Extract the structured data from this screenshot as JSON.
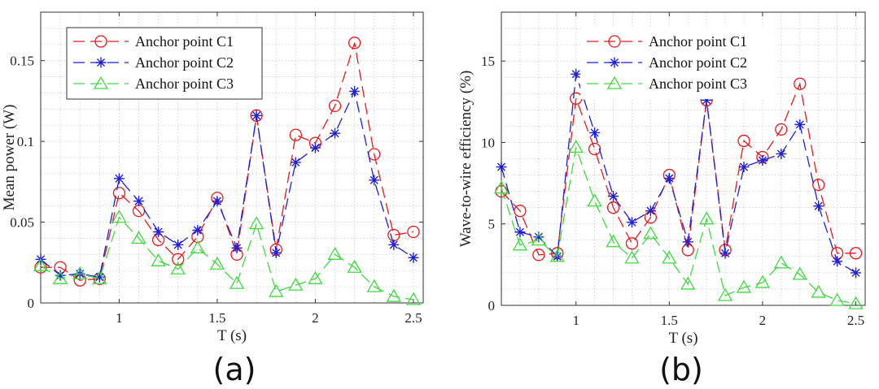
{
  "chart_data": [
    {
      "type": "line",
      "panel_label": "(a)",
      "xlabel": "T (s)",
      "ylabel": "Mean power (W)",
      "xlim": [
        0.6,
        2.55
      ],
      "ylim": [
        0,
        0.18
      ],
      "xticks": [
        1,
        1.5,
        2,
        2.5
      ],
      "xtick_labels": [
        "1",
        "1.5",
        "2",
        "2.5"
      ],
      "yticks": [
        0,
        0.05,
        0.1,
        0.15
      ],
      "ytick_labels": [
        "0",
        "0.05",
        "0.1",
        "0.15"
      ],
      "grid": true,
      "legend_position": "top-left",
      "x": [
        0.6,
        0.7,
        0.8,
        0.9,
        1.0,
        1.1,
        1.2,
        1.3,
        1.4,
        1.5,
        1.6,
        1.7,
        1.8,
        1.9,
        2.0,
        2.1,
        2.2,
        2.3,
        2.4,
        2.5
      ],
      "series": [
        {
          "name": "Anchor point C1",
          "color": "#e8191c",
          "marker": "circle",
          "values": [
            0.022,
            0.022,
            0.014,
            0.015,
            0.068,
            0.057,
            0.039,
            0.027,
            0.041,
            0.065,
            0.03,
            0.116,
            0.033,
            0.104,
            0.099,
            0.122,
            0.161,
            0.092,
            0.042,
            0.044
          ]
        },
        {
          "name": "Anchor point C2",
          "color": "#1f1fd8",
          "marker": "asterisk",
          "values": [
            0.027,
            0.017,
            0.018,
            0.016,
            0.077,
            0.063,
            0.044,
            0.036,
            0.045,
            0.063,
            0.034,
            0.116,
            0.031,
            0.087,
            0.096,
            0.105,
            0.131,
            0.076,
            0.036,
            0.028
          ]
        },
        {
          "name": "Anchor point C3",
          "color": "#3fd93f",
          "marker": "triangle",
          "values": [
            0.023,
            0.015,
            0.018,
            0.015,
            0.053,
            0.04,
            0.026,
            0.021,
            0.034,
            0.024,
            0.012,
            0.049,
            0.007,
            0.011,
            0.015,
            0.03,
            0.022,
            0.01,
            0.004,
            0.002
          ]
        }
      ]
    },
    {
      "type": "line",
      "panel_label": "(b)",
      "xlabel": "T (s)",
      "ylabel": "Wave-to-wire efficiency (%)",
      "xlim": [
        0.6,
        2.55
      ],
      "ylim": [
        0,
        18
      ],
      "xticks": [
        1,
        1.5,
        2,
        2.5
      ],
      "xtick_labels": [
        "1",
        "1.5",
        "2",
        "2.5"
      ],
      "yticks": [
        0,
        5,
        10,
        15
      ],
      "ytick_labels": [
        "0",
        "5",
        "10",
        "15"
      ],
      "grid": true,
      "legend_position": "top-right",
      "x": [
        0.6,
        0.7,
        0.8,
        0.9,
        1.0,
        1.1,
        1.2,
        1.3,
        1.4,
        1.5,
        1.6,
        1.7,
        1.8,
        1.9,
        2.0,
        2.1,
        2.2,
        2.3,
        2.4,
        2.5
      ],
      "series": [
        {
          "name": "Anchor point C1",
          "color": "#e8191c",
          "marker": "circle",
          "values": [
            7.0,
            5.8,
            3.1,
            3.2,
            12.7,
            9.6,
            6.0,
            3.8,
            5.4,
            8.0,
            3.4,
            12.6,
            3.4,
            10.1,
            9.1,
            10.8,
            13.6,
            7.4,
            3.2,
            3.2
          ]
        },
        {
          "name": "Anchor point C2",
          "color": "#1f1fd8",
          "marker": "asterisk",
          "values": [
            8.5,
            4.5,
            4.2,
            3.0,
            14.2,
            10.6,
            6.7,
            5.1,
            5.8,
            7.8,
            3.9,
            12.6,
            3.2,
            8.5,
            8.9,
            9.3,
            11.1,
            6.1,
            2.7,
            2.0
          ]
        },
        {
          "name": "Anchor point C3",
          "color": "#3fd93f",
          "marker": "triangle",
          "values": [
            7.2,
            3.7,
            4.0,
            3.0,
            9.7,
            6.4,
            3.9,
            2.9,
            4.4,
            2.9,
            1.3,
            5.3,
            0.6,
            1.1,
            1.4,
            2.6,
            1.9,
            0.8,
            0.3,
            0.1
          ]
        }
      ]
    }
  ]
}
